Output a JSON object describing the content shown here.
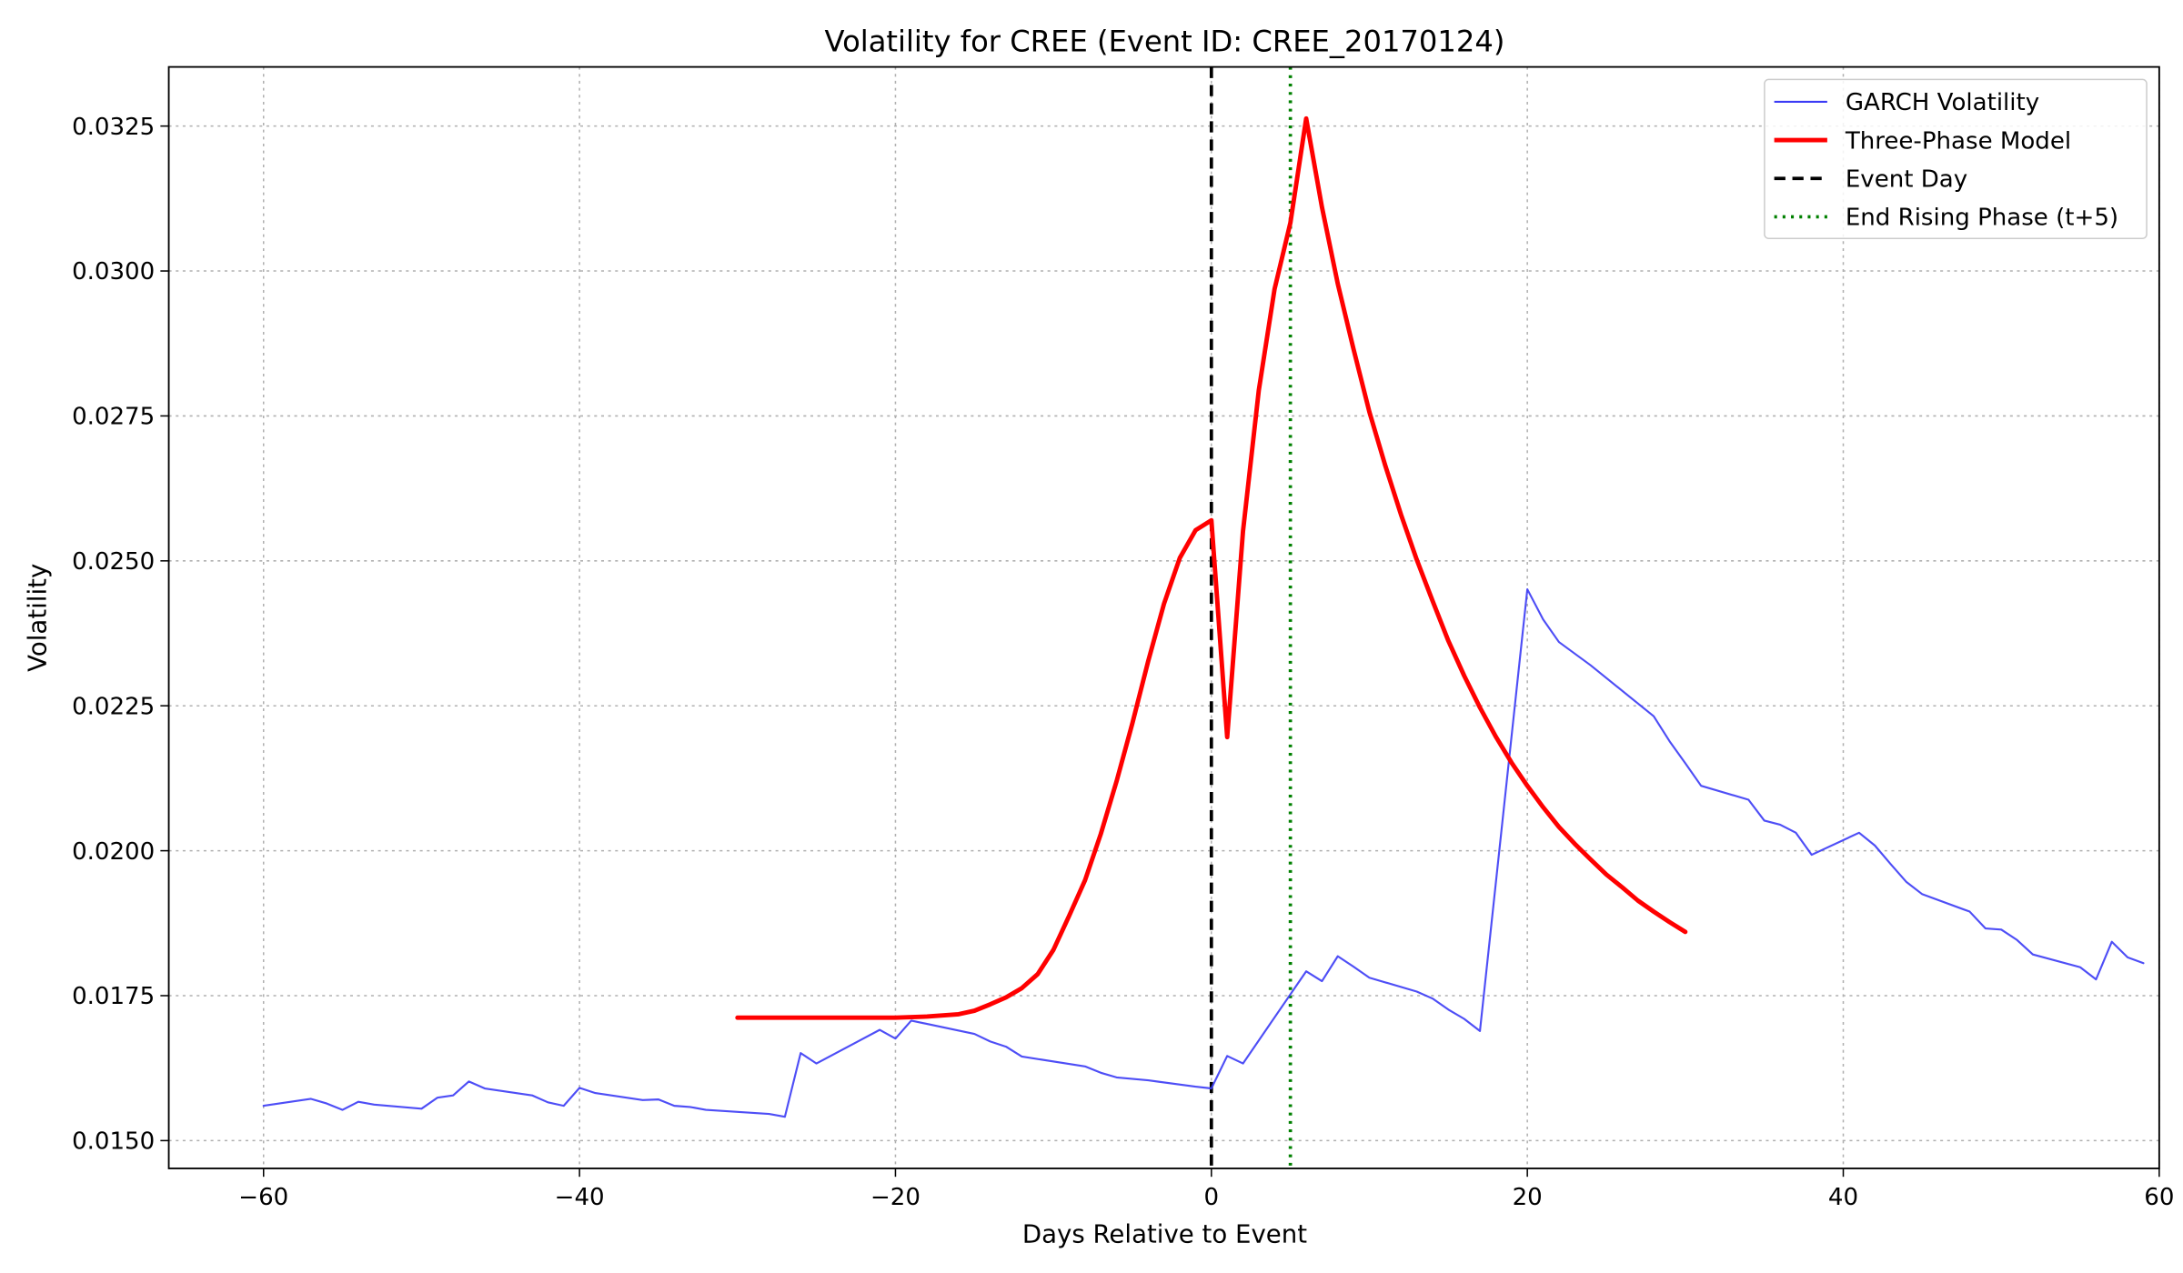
{
  "chart_data": {
    "type": "line",
    "title": "Volatility for CREE (Event ID: CREE_20170124)",
    "xlabel": "Days Relative to Event",
    "ylabel": "Volatility",
    "xlim": [
      -66,
      60
    ],
    "ylim": [
      0.01452,
      0.03352
    ],
    "xticks": [
      -60,
      -40,
      -20,
      0,
      20,
      40,
      60
    ],
    "xtick_labels": [
      "−60",
      "−40",
      "−20",
      "0",
      "20",
      "40",
      "60"
    ],
    "yticks": [
      0.015,
      0.0175,
      0.02,
      0.0225,
      0.025,
      0.0275,
      0.03,
      0.0325
    ],
    "ytick_labels": [
      "0.0150",
      "0.0175",
      "0.0200",
      "0.0225",
      "0.0250",
      "0.0275",
      "0.0300",
      "0.0325"
    ],
    "grid": true,
    "legend_position": "top-right",
    "series": [
      {
        "name": "GARCH Volatility",
        "color": "#3b3bf5",
        "style": "solid",
        "x": [
          -60,
          -57,
          -56,
          -55,
          -54,
          -53,
          -50,
          -49,
          -48,
          -47,
          -46,
          -43,
          -42,
          -41,
          -40,
          -39,
          -36,
          -35,
          -34,
          -33,
          -32,
          -28,
          -27,
          -26,
          -25,
          -21,
          -20,
          -19,
          -15,
          -14,
          -13,
          -12,
          -8,
          -7,
          -6,
          -4,
          -1,
          0,
          1,
          2,
          6,
          7,
          8,
          9,
          10,
          13,
          14,
          15,
          16,
          17,
          20,
          21,
          22,
          24,
          28,
          29,
          30,
          31,
          34,
          35,
          36,
          37,
          38,
          41,
          42,
          43,
          44,
          45,
          48,
          49,
          50,
          51,
          52,
          55,
          56,
          57,
          58,
          59
        ],
        "y": [
          0.0156,
          0.01572,
          0.01564,
          0.01553,
          0.01567,
          0.01562,
          0.01555,
          0.01574,
          0.01578,
          0.01602,
          0.0159,
          0.01578,
          0.01566,
          0.0156,
          0.01591,
          0.01582,
          0.0157,
          0.01571,
          0.0156,
          0.01558,
          0.01553,
          0.01546,
          0.01541,
          0.01651,
          0.01633,
          0.01691,
          0.01676,
          0.01707,
          0.01684,
          0.01671,
          0.01662,
          0.01645,
          0.01628,
          0.01617,
          0.01609,
          0.01604,
          0.01593,
          0.0159,
          0.01646,
          0.01633,
          0.01792,
          0.01775,
          0.01818,
          0.018,
          0.01781,
          0.01757,
          0.01745,
          0.01726,
          0.0171,
          0.01689,
          0.02451,
          0.02399,
          0.0236,
          0.0232,
          0.02232,
          0.02189,
          0.02151,
          0.02112,
          0.02088,
          0.02052,
          0.02045,
          0.02031,
          0.01993,
          0.02031,
          0.02009,
          0.01977,
          0.01946,
          0.01925,
          0.01895,
          0.01866,
          0.01864,
          0.01846,
          0.01821,
          0.01799,
          0.01778,
          0.01843,
          0.01816,
          0.01806
        ]
      },
      {
        "name": "Three-Phase Model",
        "color": "#ff0000",
        "style": "solid",
        "x": [
          -30,
          -20,
          -18,
          -16,
          -15,
          -14,
          -13,
          -12,
          -11,
          -10,
          -9,
          -8,
          -7,
          -6,
          -5,
          -4,
          -3,
          -2,
          -1,
          0,
          1,
          2,
          3,
          4,
          5,
          6,
          7,
          8,
          9,
          10,
          11,
          12,
          13,
          14,
          15,
          16,
          17,
          18,
          19,
          20,
          21,
          22,
          23,
          24,
          25,
          26,
          27,
          28,
          29,
          30
        ],
        "y": [
          0.01712,
          0.01712,
          0.01714,
          0.01718,
          0.01724,
          0.01735,
          0.01747,
          0.01763,
          0.01787,
          0.01829,
          0.01888,
          0.01949,
          0.02029,
          0.0212,
          0.0222,
          0.02327,
          0.02426,
          0.02505,
          0.02553,
          0.0257,
          0.02196,
          0.02551,
          0.02794,
          0.02969,
          0.03083,
          0.03263,
          0.0311,
          0.02978,
          0.02865,
          0.02757,
          0.02665,
          0.0258,
          0.02502,
          0.02431,
          0.02362,
          0.02302,
          0.02247,
          0.02197,
          0.02152,
          0.02112,
          0.02075,
          0.02041,
          0.02012,
          0.01985,
          0.01959,
          0.01937,
          0.01914,
          0.01895,
          0.01877,
          0.0186
        ]
      }
    ],
    "reference_lines": [
      {
        "name": "Event Day",
        "x": 0,
        "color": "#000000",
        "style": "dashed"
      },
      {
        "name": "End Rising Phase (t+5)",
        "x": 5,
        "color": "#008000",
        "style": "dotted"
      }
    ]
  }
}
